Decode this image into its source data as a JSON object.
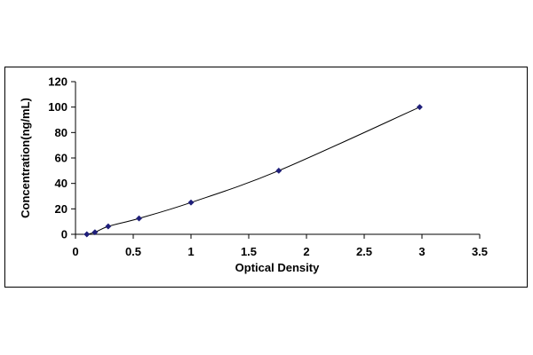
{
  "chart_data": {
    "type": "scatter",
    "title": "",
    "xlabel": "Optical Density",
    "ylabel": "Concentration(ng/mL)",
    "xlim": [
      0,
      3.5
    ],
    "ylim": [
      0,
      120
    ],
    "x_ticks": [
      "0",
      "0.5",
      "1",
      "1.5",
      "2",
      "2.5",
      "3",
      "3.5"
    ],
    "y_ticks": [
      "0",
      "20",
      "40",
      "60",
      "80",
      "100",
      "120"
    ],
    "grid": false,
    "legend": "none",
    "series": [
      {
        "points": [
          {
            "x": 0.098,
            "y": 0
          },
          {
            "x": 0.168,
            "y": 1.6
          },
          {
            "x": 0.283,
            "y": 6.2
          },
          {
            "x": 0.55,
            "y": 12.5
          },
          {
            "x": 1.0,
            "y": 25
          },
          {
            "x": 1.76,
            "y": 50
          },
          {
            "x": 2.98,
            "y": 100
          }
        ],
        "trendline": true,
        "color": "#1f1f7a"
      }
    ]
  }
}
